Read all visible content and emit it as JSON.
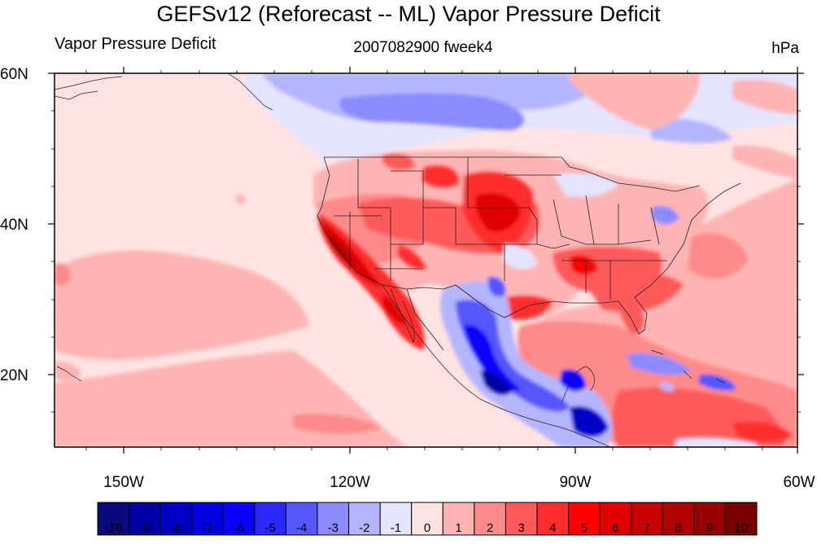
{
  "title": "GEFSv12 (Reforecast -- ML) Vapor Pressure Deficit",
  "subtitle_left": "Vapor Pressure Deficit",
  "subtitle_center": "2007082900 fweek4",
  "subtitle_right": "hPa",
  "lat_labels": [
    "60N",
    "40N",
    "20N"
  ],
  "lon_labels": [
    "150W",
    "120W",
    "90W",
    "60W"
  ],
  "colorbar": {
    "labels": [
      "-10",
      "-9",
      "-8",
      "-7",
      "-6",
      "-5",
      "-4",
      "-3",
      "-2",
      "-1",
      "0",
      "1",
      "2",
      "3",
      "4",
      "5",
      "6",
      "7",
      "8",
      "9",
      "10"
    ],
    "colors": [
      "#0a0a7d",
      "#0000a6",
      "#0000c7",
      "#0000e1",
      "#0a00ff",
      "#2828ff",
      "#5656ff",
      "#8b8bff",
      "#b5b5ff",
      "#e4e4ff",
      "#ffe3e3",
      "#ffb4b4",
      "#ff8a8a",
      "#ff5a5a",
      "#ff2e2e",
      "#ff0000",
      "#e00000",
      "#c70000",
      "#b00000",
      "#990000",
      "#7a0000"
    ]
  }
}
